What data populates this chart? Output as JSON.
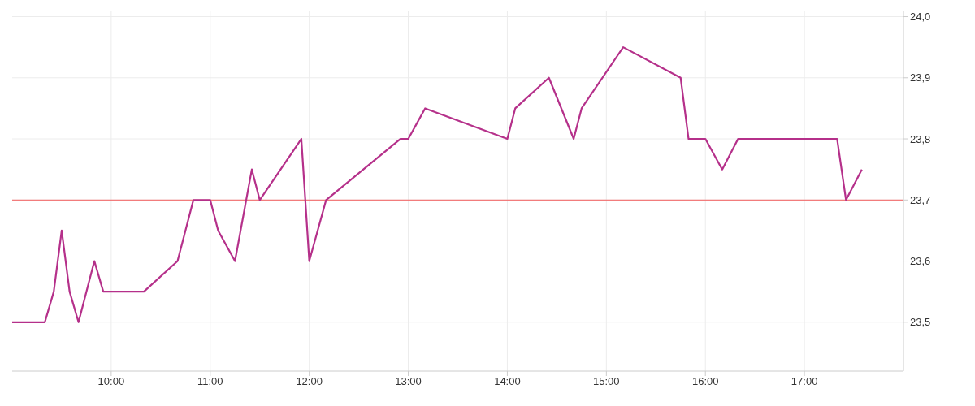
{
  "chart_data": {
    "type": "line",
    "x": [
      9.0,
      9.33,
      9.42,
      9.5,
      9.58,
      9.67,
      9.83,
      9.92,
      10.33,
      10.67,
      10.83,
      11.0,
      11.08,
      11.25,
      11.42,
      11.5,
      11.92,
      12.0,
      12.17,
      12.92,
      13.0,
      13.17,
      14.0,
      14.08,
      14.42,
      14.67,
      14.75,
      15.17,
      15.75,
      15.83,
      16.0,
      16.17,
      16.33,
      17.33,
      17.42,
      17.58
    ],
    "series": [
      {
        "color": "#b5308a",
        "values": [
          23.5,
          23.5,
          23.55,
          23.65,
          23.55,
          23.5,
          23.6,
          23.55,
          23.55,
          23.6,
          23.7,
          23.7,
          23.65,
          23.6,
          23.75,
          23.7,
          23.8,
          23.6,
          23.7,
          23.8,
          23.8,
          23.85,
          23.8,
          23.85,
          23.9,
          23.8,
          23.85,
          23.95,
          23.9,
          23.8,
          23.8,
          23.75,
          23.8,
          23.8,
          23.7,
          23.75
        ]
      }
    ],
    "xlim": [
      9,
      18
    ],
    "xticks": [
      {
        "value": 10,
        "label": "10:00"
      },
      {
        "value": 11,
        "label": "11:00"
      },
      {
        "value": 12,
        "label": "12:00"
      },
      {
        "value": 13,
        "label": "13:00"
      },
      {
        "value": 14,
        "label": "14:00"
      },
      {
        "value": 15,
        "label": "15:00"
      },
      {
        "value": 16,
        "label": "16:00"
      },
      {
        "value": 17,
        "label": "17:00"
      }
    ],
    "ylim": [
      23.42,
      24.01
    ],
    "yticks": [
      {
        "value": 23.5,
        "label": "23,5"
      },
      {
        "value": 23.6,
        "label": "23,6"
      },
      {
        "value": 23.7,
        "label": "23,7"
      },
      {
        "value": 23.8,
        "label": "23,8"
      },
      {
        "value": 23.9,
        "label": "23,9"
      },
      {
        "value": 24.0,
        "label": "24,0"
      }
    ],
    "ref_lines": [
      {
        "axis": "y",
        "value": 23.7,
        "color": "#f25c5c"
      }
    ],
    "grid": true,
    "marker": "none",
    "line_style": "solid",
    "legend": false
  }
}
